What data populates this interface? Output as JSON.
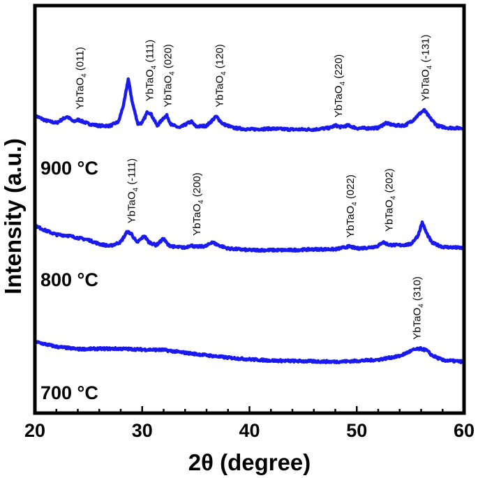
{
  "chart_data": {
    "type": "line",
    "xlabel": "2θ (degree)",
    "ylabel": "Intensity (a.u.)",
    "xlim": [
      20,
      60
    ],
    "xticks": [
      20,
      30,
      40,
      50,
      60
    ],
    "ylim": [
      0,
      100
    ],
    "yticks_shown": false,
    "grid": false,
    "legend": "none",
    "line_color": "#1a1aee",
    "series": [
      {
        "name": "900 °C",
        "label": "900 °C",
        "baseline": 70,
        "points": [
          [
            20,
            73
          ],
          [
            21,
            71.8
          ],
          [
            22,
            71.2
          ],
          [
            23,
            72.8
          ],
          [
            23.6,
            71.5
          ],
          [
            24,
            72
          ],
          [
            25,
            71
          ],
          [
            26,
            70.5
          ],
          [
            27,
            70.5
          ],
          [
            27.8,
            71.5
          ],
          [
            28.3,
            76
          ],
          [
            28.7,
            82
          ],
          [
            29.1,
            76
          ],
          [
            29.6,
            71
          ],
          [
            30,
            71.2
          ],
          [
            30.5,
            74
          ],
          [
            30.8,
            73.5
          ],
          [
            31.4,
            70.5
          ],
          [
            32,
            72.5
          ],
          [
            32.3,
            73
          ],
          [
            32.7,
            70.8
          ],
          [
            33.5,
            70
          ],
          [
            34.3,
            71.2
          ],
          [
            34.6,
            71.5
          ],
          [
            35,
            70.3
          ],
          [
            36,
            70.5
          ],
          [
            36.9,
            72.8
          ],
          [
            37.5,
            71
          ],
          [
            38.5,
            70
          ],
          [
            40,
            69.6
          ],
          [
            42,
            69.8
          ],
          [
            44,
            69.6
          ],
          [
            46,
            69.6
          ],
          [
            47.5,
            70
          ],
          [
            48,
            70.6
          ],
          [
            48.5,
            70.2
          ],
          [
            49.2,
            70.6
          ],
          [
            50,
            69.9
          ],
          [
            51,
            69.9
          ],
          [
            52,
            70
          ],
          [
            52.7,
            71.2
          ],
          [
            53.5,
            70.6
          ],
          [
            54.5,
            70.6
          ],
          [
            55.2,
            71.8
          ],
          [
            56,
            73.8
          ],
          [
            56.3,
            74.3
          ],
          [
            56.8,
            72.5
          ],
          [
            57.5,
            70.5
          ],
          [
            58.5,
            70
          ],
          [
            60,
            69.9
          ]
        ]
      },
      {
        "name": "800 °C",
        "label": "800 °C",
        "baseline": 40,
        "points": [
          [
            20,
            46
          ],
          [
            21,
            44.8
          ],
          [
            22,
            43.8
          ],
          [
            23,
            43.6
          ],
          [
            24,
            43
          ],
          [
            25,
            42.5
          ],
          [
            26,
            41.5
          ],
          [
            27,
            41
          ],
          [
            28,
            42
          ],
          [
            28.6,
            44.5
          ],
          [
            29,
            44
          ],
          [
            29.5,
            41.8
          ],
          [
            30.2,
            43.5
          ],
          [
            30.6,
            42
          ],
          [
            31.3,
            41.2
          ],
          [
            32,
            42.8
          ],
          [
            32.4,
            41.3
          ],
          [
            33,
            40.8
          ],
          [
            34,
            40.6
          ],
          [
            34.5,
            41.2
          ],
          [
            35,
            40.8
          ],
          [
            36,
            41
          ],
          [
            36.5,
            42
          ],
          [
            37,
            41.3
          ],
          [
            38,
            40.4
          ],
          [
            40,
            40
          ],
          [
            42,
            40
          ],
          [
            44,
            40
          ],
          [
            46,
            40.2
          ],
          [
            48,
            40.2
          ],
          [
            49.3,
            40.9
          ],
          [
            50,
            40.4
          ],
          [
            51,
            40.6
          ],
          [
            52,
            41
          ],
          [
            52.4,
            42
          ],
          [
            53,
            41.3
          ],
          [
            54,
            41.2
          ],
          [
            55,
            41.4
          ],
          [
            55.7,
            43.5
          ],
          [
            56.1,
            46.8
          ],
          [
            56.5,
            44.2
          ],
          [
            57,
            41.8
          ],
          [
            58,
            40.8
          ],
          [
            60,
            40.5
          ]
        ]
      },
      {
        "name": "700 °C",
        "label": "700 °C",
        "baseline": 12,
        "points": [
          [
            20,
            17.5
          ],
          [
            22,
            16.3
          ],
          [
            24,
            15.7
          ],
          [
            26,
            15.8
          ],
          [
            28,
            15.8
          ],
          [
            30,
            15.6
          ],
          [
            32,
            15.5
          ],
          [
            34,
            14.8
          ],
          [
            36,
            14.2
          ],
          [
            38,
            13.6
          ],
          [
            40,
            13.2
          ],
          [
            42,
            12.9
          ],
          [
            44,
            12.8
          ],
          [
            46,
            12.7
          ],
          [
            48,
            12.6
          ],
          [
            50,
            12.8
          ],
          [
            52,
            13.1
          ],
          [
            54,
            14.0
          ],
          [
            55,
            15.2
          ],
          [
            55.4,
            15.6
          ],
          [
            56,
            15.8
          ],
          [
            56.5,
            15.4
          ],
          [
            57,
            14.2
          ],
          [
            58,
            13.0
          ],
          [
            60,
            12.6
          ]
        ]
      }
    ],
    "annotations": [
      {
        "text": "YbTaO",
        "sub": "4",
        "hkl": " (011)",
        "x": 24.2,
        "series": "900 °C",
        "y": 73.5
      },
      {
        "text": "YbTaO",
        "sub": "4",
        "hkl": " (111)",
        "x": 30.7,
        "series": "900 °C",
        "y": 75.5
      },
      {
        "text": "YbTaO",
        "sub": "4",
        "hkl": " (020)",
        "x": 32.4,
        "series": "900 °C",
        "y": 74
      },
      {
        "text": "YbTaO",
        "sub": "4",
        "hkl": " (120)",
        "x": 37.2,
        "series": "900 °C",
        "y": 74
      },
      {
        "text": "YbTaO",
        "sub": "4",
        "hkl": " (220)",
        "x": 48.3,
        "series": "900 °C",
        "y": 71.5
      },
      {
        "text": "YbTaO",
        "sub": "4",
        "hkl": " (-131)",
        "x": 56.4,
        "series": "900 °C",
        "y": 75.5
      },
      {
        "text": "YbTaO",
        "sub": "4",
        "hkl": " (-111)",
        "x": 29.0,
        "series": "800 °C",
        "y": 45.5
      },
      {
        "text": "YbTaO",
        "sub": "4",
        "hkl": " (200)",
        "x": 35.1,
        "series": "800 °C",
        "y": 42.5
      },
      {
        "text": "YbTaO",
        "sub": "4",
        "hkl": " (022)",
        "x": 49.4,
        "series": "800 °C",
        "y": 42
      },
      {
        "text": "YbTaO",
        "sub": "4",
        "hkl": " (202)",
        "x": 53.0,
        "series": "800 °C",
        "y": 43.5
      },
      {
        "text": "YbTaO",
        "sub": "4",
        "hkl": " (310)",
        "x": 55.6,
        "series": "700 °C",
        "y": 17
      }
    ]
  }
}
